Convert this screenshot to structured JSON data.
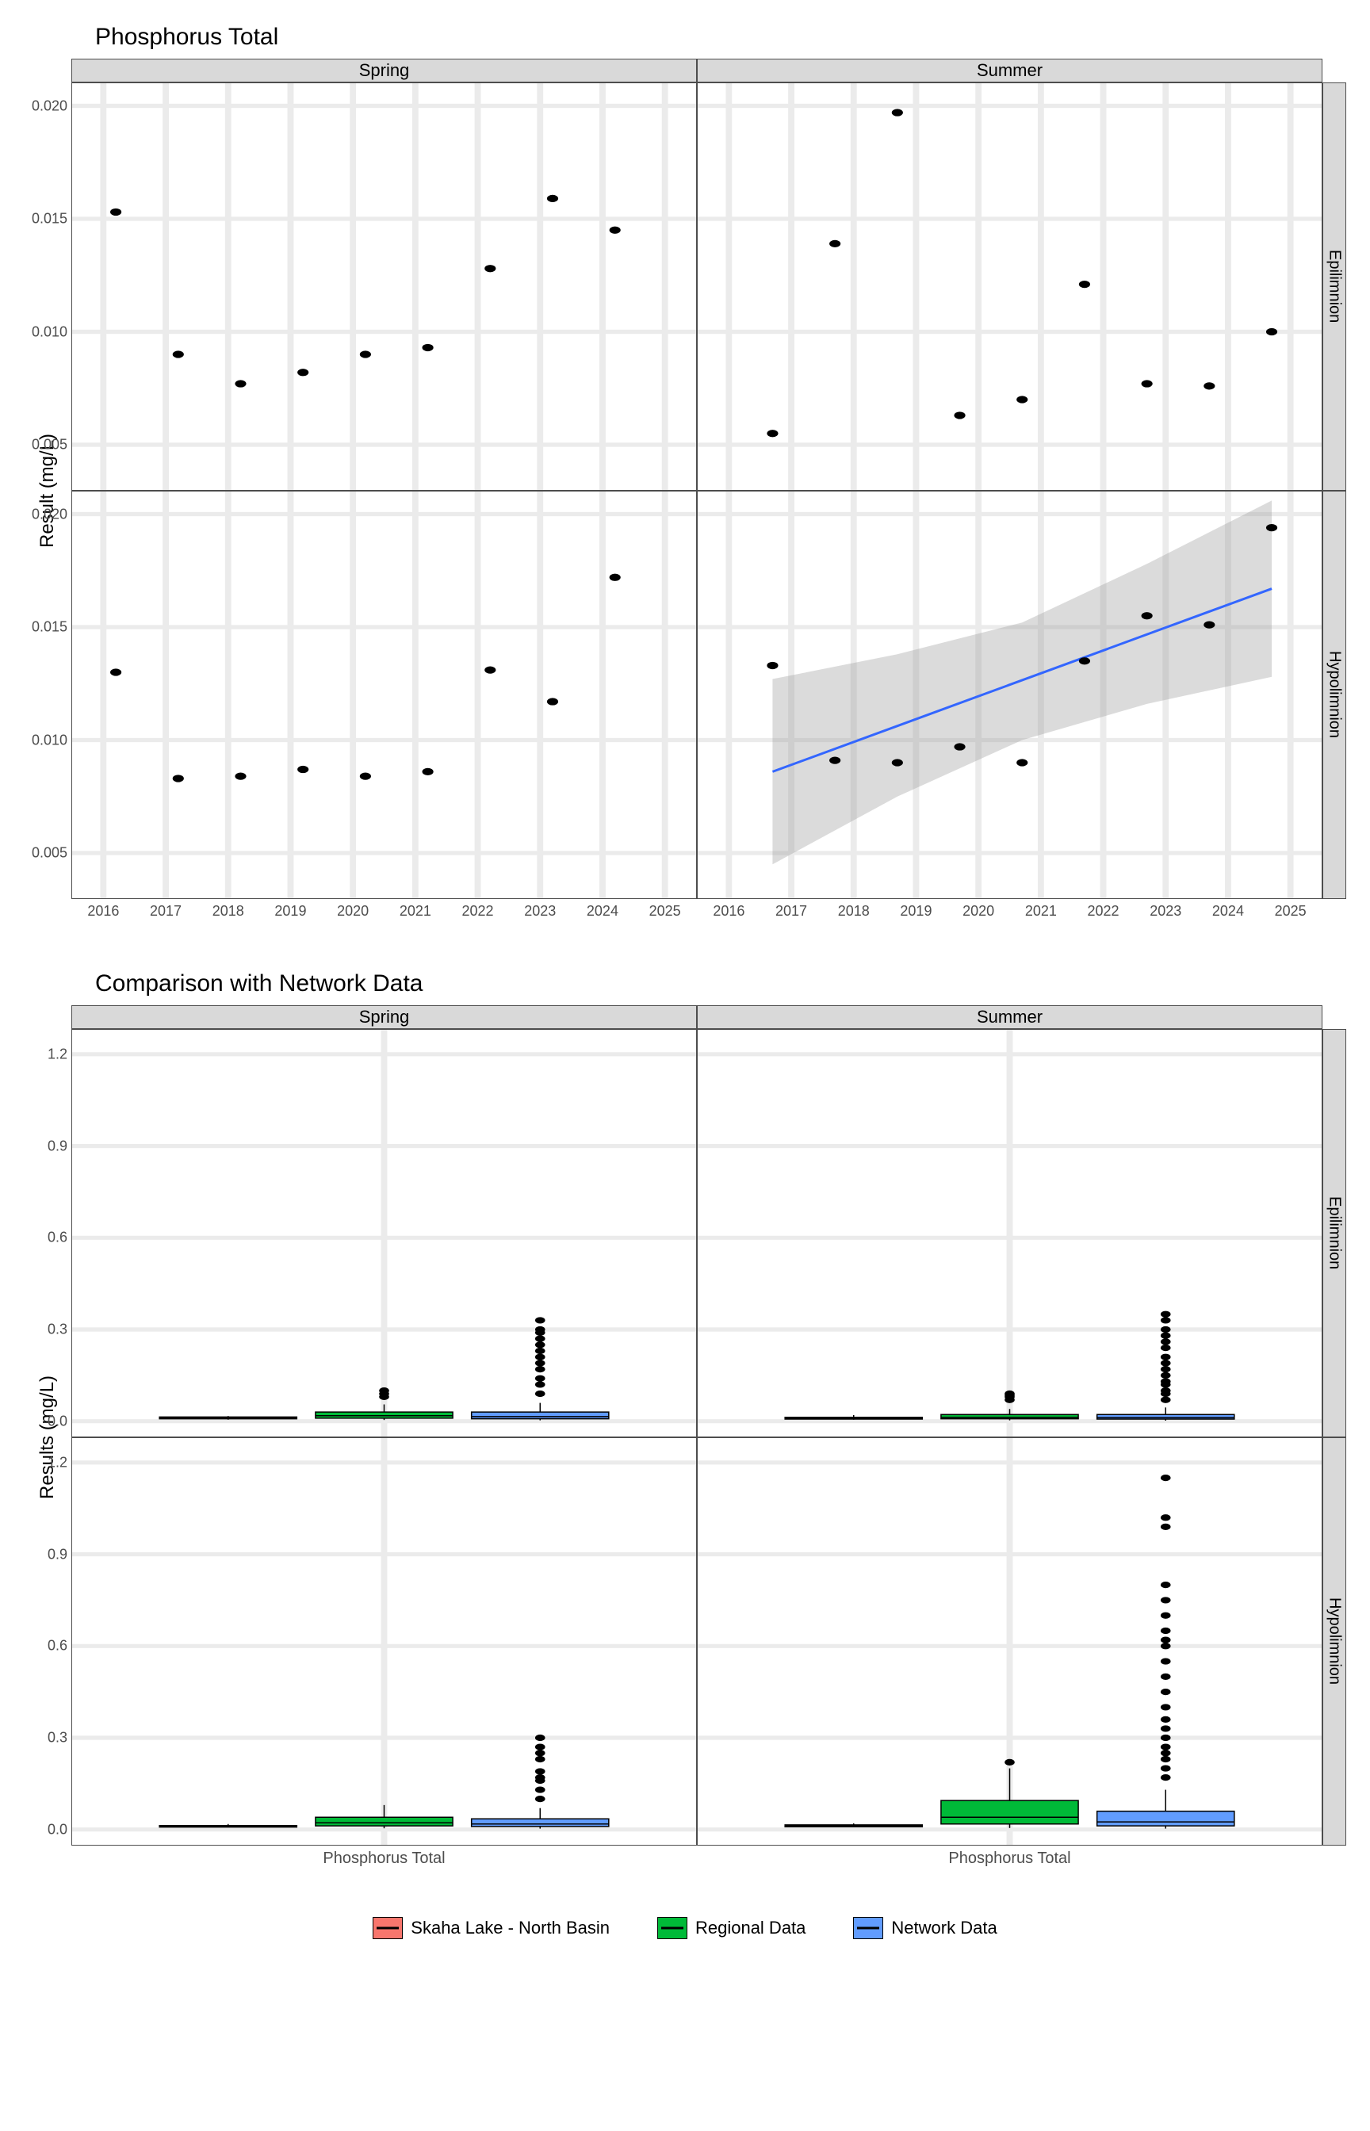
{
  "chart1": {
    "title": "Phosphorus Total",
    "ylabel": "Result (mg/L)",
    "type": "scatter",
    "col_facets": [
      "Spring",
      "Summer"
    ],
    "row_facets": [
      "Epilimnion",
      "Hypolimnion"
    ],
    "xlim": [
      2015.5,
      2025.5
    ],
    "ylim": [
      0.003,
      0.021
    ],
    "xticks": [
      2016,
      2017,
      2018,
      2019,
      2020,
      2021,
      2022,
      2023,
      2024,
      2025
    ],
    "yticks": [
      0.005,
      0.01,
      0.015,
      0.02
    ],
    "ytick_labels": [
      "0.005",
      "0.010",
      "0.015",
      "0.020"
    ],
    "grid_color": "#ebebeb",
    "point_color": "#000000",
    "point_radius": 4.5,
    "trend_color": "#3366ff",
    "band_color": "#999999",
    "panels": {
      "Spring_Epilimnion": {
        "points": [
          [
            2016.2,
            0.0153
          ],
          [
            2017.2,
            0.009
          ],
          [
            2018.2,
            0.0077
          ],
          [
            2019.2,
            0.0082
          ],
          [
            2020.2,
            0.009
          ],
          [
            2021.2,
            0.0093
          ],
          [
            2022.2,
            0.0128
          ],
          [
            2023.2,
            0.0159
          ],
          [
            2024.2,
            0.0145
          ]
        ]
      },
      "Summer_Epilimnion": {
        "points": [
          [
            2016.7,
            0.0055
          ],
          [
            2017.7,
            0.0139
          ],
          [
            2018.7,
            0.0197
          ],
          [
            2019.7,
            0.0063
          ],
          [
            2020.7,
            0.007
          ],
          [
            2021.7,
            0.0121
          ],
          [
            2022.7,
            0.0077
          ],
          [
            2023.7,
            0.0076
          ],
          [
            2024.7,
            0.01
          ]
        ]
      },
      "Spring_Hypolimnion": {
        "points": [
          [
            2016.2,
            0.013
          ],
          [
            2017.2,
            0.0083
          ],
          [
            2018.2,
            0.0084
          ],
          [
            2019.2,
            0.0087
          ],
          [
            2020.2,
            0.0084
          ],
          [
            2021.2,
            0.0086
          ],
          [
            2022.2,
            0.0131
          ],
          [
            2023.2,
            0.0117
          ],
          [
            2024.2,
            0.0172
          ]
        ]
      },
      "Summer_Hypolimnion": {
        "points": [
          [
            2016.7,
            0.0133
          ],
          [
            2017.7,
            0.0091
          ],
          [
            2018.7,
            0.009
          ],
          [
            2019.7,
            0.0097
          ],
          [
            2020.7,
            0.009
          ],
          [
            2021.7,
            0.0135
          ],
          [
            2022.7,
            0.0155
          ],
          [
            2023.7,
            0.0151
          ],
          [
            2024.7,
            0.0194
          ]
        ],
        "trend": {
          "x": [
            2016.7,
            2024.7
          ],
          "y": [
            0.0086,
            0.0167
          ],
          "band": [
            [
              2016.7,
              0.0045,
              0.0127
            ],
            [
              2018.7,
              0.0075,
              0.0138
            ],
            [
              2020.7,
              0.01,
              0.0152
            ],
            [
              2022.7,
              0.0116,
              0.0178
            ],
            [
              2024.7,
              0.0128,
              0.0206
            ]
          ]
        }
      }
    }
  },
  "chart2": {
    "title": "Comparison with Network Data",
    "ylabel": "Results (mg/L)",
    "type": "boxplot",
    "col_facets": [
      "Spring",
      "Summer"
    ],
    "row_facets": [
      "Epilimnion",
      "Hypolimnion"
    ],
    "xlabel": "Phosphorus Total",
    "ylim": [
      -0.05,
      1.28
    ],
    "yticks": [
      0.0,
      0.3,
      0.6,
      0.9,
      1.2
    ],
    "ytick_labels": [
      "0.0",
      "0.3",
      "0.6",
      "0.9",
      "1.2"
    ],
    "groups": [
      "Skaha Lake - North Basin",
      "Regional Data",
      "Network Data"
    ],
    "group_colors": {
      "Skaha Lake - North Basin": "#f8766d",
      "Regional Data": "#00ba38",
      "Network Data": "#619cff"
    },
    "box_width": 0.22,
    "panels": {
      "Spring_Epilimnion": {
        "boxes": [
          {
            "g": "Skaha Lake - North Basin",
            "min": 0.005,
            "q1": 0.008,
            "med": 0.01,
            "q3": 0.014,
            "max": 0.017,
            "out": []
          },
          {
            "g": "Regional Data",
            "min": 0.004,
            "q1": 0.01,
            "med": 0.018,
            "q3": 0.03,
            "max": 0.055,
            "out": [
              0.08,
              0.09,
              0.1
            ]
          },
          {
            "g": "Network Data",
            "min": 0.003,
            "q1": 0.008,
            "med": 0.015,
            "q3": 0.03,
            "max": 0.06,
            "out": [
              0.09,
              0.12,
              0.14,
              0.17,
              0.19,
              0.21,
              0.23,
              0.25,
              0.27,
              0.29,
              0.3,
              0.33
            ]
          }
        ]
      },
      "Summer_Epilimnion": {
        "boxes": [
          {
            "g": "Skaha Lake - North Basin",
            "min": 0.005,
            "q1": 0.007,
            "med": 0.009,
            "q3": 0.013,
            "max": 0.02,
            "out": []
          },
          {
            "g": "Regional Data",
            "min": 0.003,
            "q1": 0.008,
            "med": 0.013,
            "q3": 0.022,
            "max": 0.04,
            "out": [
              0.07,
              0.08,
              0.085,
              0.09
            ]
          },
          {
            "g": "Network Data",
            "min": 0.002,
            "q1": 0.007,
            "med": 0.012,
            "q3": 0.022,
            "max": 0.045,
            "out": [
              0.07,
              0.09,
              0.1,
              0.12,
              0.13,
              0.15,
              0.17,
              0.19,
              0.21,
              0.24,
              0.26,
              0.28,
              0.3,
              0.33,
              0.35
            ]
          }
        ]
      },
      "Spring_Hypolimnion": {
        "boxes": [
          {
            "g": "Skaha Lake - North Basin",
            "min": 0.007,
            "q1": 0.008,
            "med": 0.01,
            "q3": 0.013,
            "max": 0.018,
            "out": []
          },
          {
            "g": "Regional Data",
            "min": 0.004,
            "q1": 0.012,
            "med": 0.022,
            "q3": 0.04,
            "max": 0.08,
            "out": []
          },
          {
            "g": "Network Data",
            "min": 0.003,
            "q1": 0.01,
            "med": 0.018,
            "q3": 0.035,
            "max": 0.07,
            "out": [
              0.1,
              0.13,
              0.16,
              0.17,
              0.19,
              0.23,
              0.25,
              0.27,
              0.3
            ]
          }
        ]
      },
      "Summer_Hypolimnion": {
        "boxes": [
          {
            "g": "Skaha Lake - North Basin",
            "min": 0.008,
            "q1": 0.009,
            "med": 0.012,
            "q3": 0.015,
            "max": 0.02,
            "out": []
          },
          {
            "g": "Regional Data",
            "min": 0.005,
            "q1": 0.018,
            "med": 0.04,
            "q3": 0.095,
            "max": 0.2,
            "out": [
              0.22
            ]
          },
          {
            "g": "Network Data",
            "min": 0.003,
            "q1": 0.012,
            "med": 0.025,
            "q3": 0.06,
            "max": 0.13,
            "out": [
              0.17,
              0.2,
              0.23,
              0.25,
              0.27,
              0.3,
              0.33,
              0.36,
              0.4,
              0.45,
              0.5,
              0.55,
              0.6,
              0.62,
              0.65,
              0.7,
              0.75,
              0.8,
              0.99,
              1.02,
              1.15
            ]
          }
        ]
      }
    }
  },
  "legend": {
    "items": [
      {
        "label": "Skaha Lake - North Basin",
        "color": "#f8766d"
      },
      {
        "label": "Regional Data",
        "color": "#00ba38"
      },
      {
        "label": "Network Data",
        "color": "#619cff"
      }
    ]
  }
}
